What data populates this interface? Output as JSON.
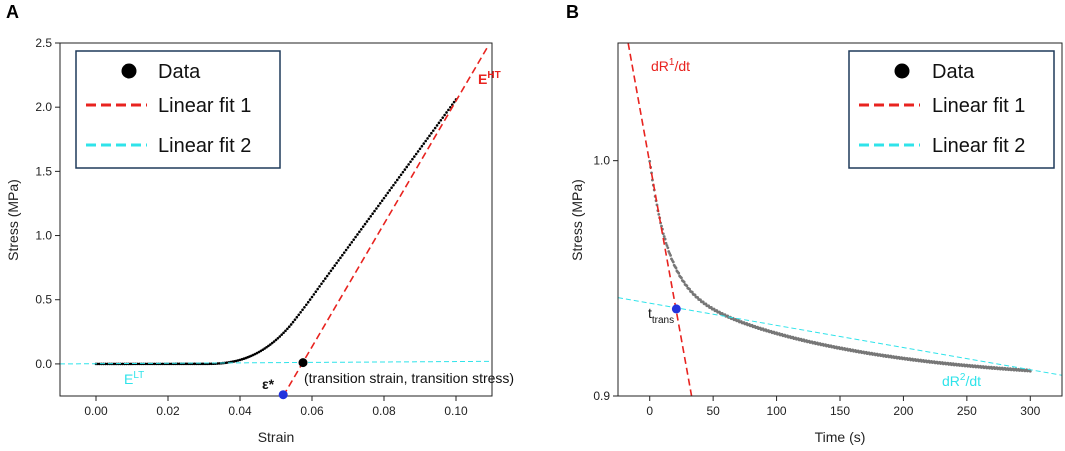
{
  "chart_data": [
    {
      "panel_label": "A",
      "type": "scatter",
      "xlabel": "Strain",
      "ylabel": "Stress (MPa)",
      "xlim": [
        -0.01,
        0.11
      ],
      "ylim": [
        -0.25,
        2.5
      ],
      "xticks": [
        0.0,
        0.02,
        0.04,
        0.06,
        0.08,
        0.1
      ],
      "xtick_labels": [
        "0.00",
        "0.02",
        "0.04",
        "0.06",
        "0.08",
        "0.10"
      ],
      "yticks": [
        0.0,
        0.5,
        1.0,
        1.5,
        2.0,
        2.5
      ],
      "ytick_labels": [
        "0.0",
        "0.5",
        "1.0",
        "1.5",
        "2.0",
        "2.5"
      ],
      "series": [
        {
          "name": "Data",
          "kind": "points",
          "color": "#000000",
          "x_range": [
            0.0,
            0.1
          ],
          "shape": "toe-region then linear",
          "values_note": "stress ~0 until 0.03, 0.06 at 0.04, 0.3 at 0.054, then linear to 2.06 at 0.1"
        },
        {
          "name": "Linear fit 1",
          "kind": "dashed-line",
          "color": "#e8231f",
          "x": [
            0.052,
            0.109
          ],
          "y": [
            -0.25,
            2.48
          ]
        },
        {
          "name": "Linear fit 2",
          "kind": "dashed-line",
          "color": "#2fe3ea",
          "x": [
            -0.01,
            0.11
          ],
          "y": [
            0.0,
            0.02
          ]
        }
      ],
      "legend": {
        "position": "top-left",
        "entries": [
          "Data",
          "Linear fit 1",
          "Linear fit 2"
        ]
      },
      "annotations": {
        "eht": {
          "base": "E",
          "sup": "HT",
          "color": "#e8231f"
        },
        "elt": {
          "base": "E",
          "sup": "LT",
          "color": "#2fe3ea"
        },
        "epsilon": "ε*",
        "transition": "(transition strain, transition stress)"
      },
      "markers": {
        "epsilon_point": {
          "x": 0.052,
          "y": -0.24,
          "color": "#2233dd"
        },
        "transition_point": {
          "x": 0.0575,
          "y": 0.01,
          "color": "#000000"
        }
      }
    },
    {
      "panel_label": "B",
      "type": "scatter",
      "xlabel": "Time (s)",
      "ylabel": "Stress (MPa)",
      "xlim": [
        -25,
        325
      ],
      "ylim": [
        0.9,
        1.05
      ],
      "xticks": [
        0,
        50,
        100,
        150,
        200,
        250,
        300
      ],
      "xtick_labels": [
        "0",
        "50",
        "100",
        "150",
        "200",
        "250",
        "300"
      ],
      "yticks": [
        0.9,
        1.0
      ],
      "ytick_labels": [
        "0.9",
        "1.0"
      ],
      "series": [
        {
          "name": "Data",
          "kind": "points",
          "color": "#777777",
          "x_range": [
            0,
            300
          ],
          "shape": "stress relaxation",
          "values_note": "1.0 at t=0, 0.944 at t=50, 0.919 at t=200, 0.910 at t=300"
        },
        {
          "name": "Linear fit 1",
          "kind": "dashed-line",
          "color": "#e8231f",
          "x": [
            -17,
            33
          ],
          "y": [
            1.05,
            0.9
          ]
        },
        {
          "name": "Linear fit 2",
          "kind": "dashed-line",
          "color": "#2fe3ea",
          "x": [
            -25,
            325
          ],
          "y": [
            0.9418,
            0.9088
          ]
        }
      ],
      "legend": {
        "position": "top-right",
        "entries": [
          "Data",
          "Linear fit 1",
          "Linear fit 2"
        ]
      },
      "annotations": {
        "dr1": {
          "pre": "dR",
          "sup": "1",
          "post": "/dt",
          "color": "#e8231f"
        },
        "dr2": {
          "pre": "dR",
          "sup": "2",
          "post": "/dt",
          "color": "#2fe3ea"
        },
        "ttrans": {
          "base": "t",
          "sub": "trans"
        }
      },
      "markers": {
        "transition_point": {
          "x": 21,
          "y": 0.937,
          "color": "#2233dd"
        }
      }
    }
  ]
}
